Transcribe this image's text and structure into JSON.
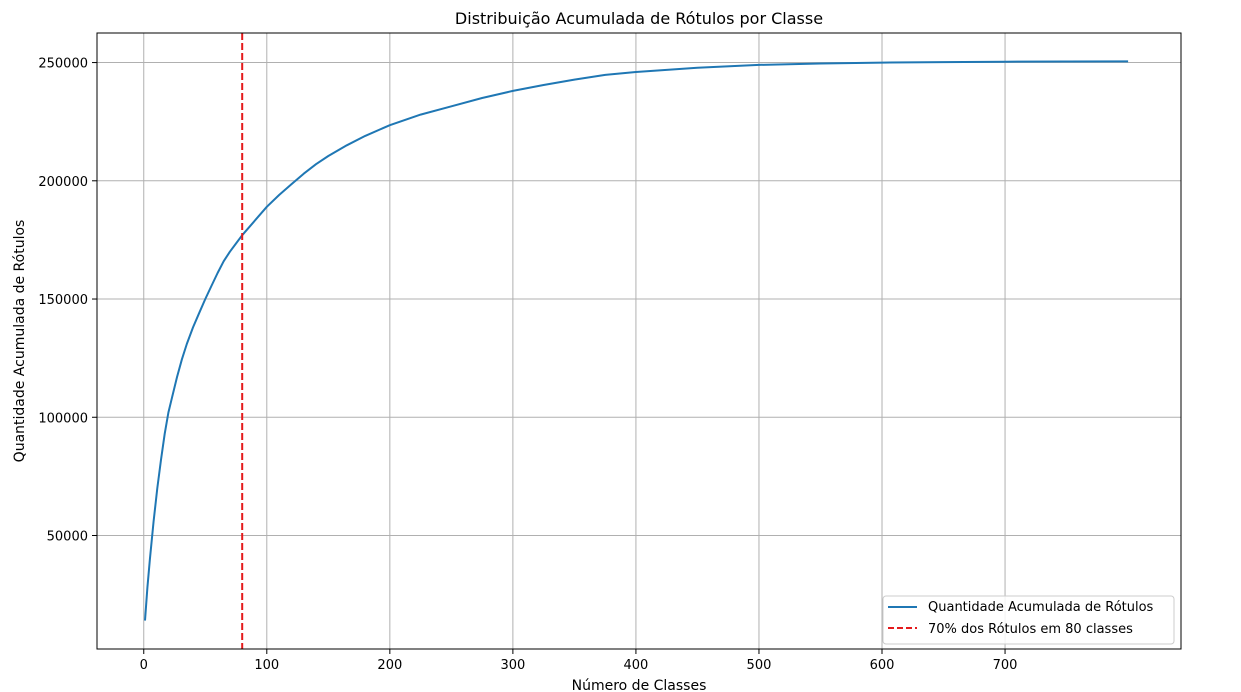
{
  "chart_data": {
    "type": "line",
    "title": "Distribuição Acumulada de Rótulos por Classe",
    "xlabel": "Número de Classes",
    "ylabel": "Quantidade Acumulada de Rótulos",
    "xlim": [
      -38,
      843
    ],
    "ylim": [
      2000,
      262500
    ],
    "xticks": [
      0,
      100,
      200,
      300,
      400,
      500,
      600,
      700
    ],
    "yticks": [
      50000,
      100000,
      150000,
      200000,
      250000
    ],
    "grid": true,
    "legend_position": "bottom-right",
    "series": [
      {
        "name": "Quantidade Acumulada de Rótulos",
        "color": "#1f77b4",
        "style": "solid",
        "x": [
          1,
          3,
          5,
          8,
          11,
          14,
          17,
          20,
          23,
          27,
          31,
          35,
          40,
          45,
          50,
          55,
          60,
          65,
          70,
          75,
          80,
          90,
          100,
          110,
          120,
          130,
          140,
          150,
          165,
          180,
          200,
          225,
          250,
          275,
          300,
          325,
          350,
          375,
          400,
          450,
          500,
          550,
          600,
          650,
          700,
          750,
          800
        ],
        "y": [
          14000,
          28000,
          40000,
          56000,
          70000,
          82000,
          93000,
          102000,
          108500,
          117000,
          124500,
          131000,
          138000,
          144000,
          150000,
          155500,
          161000,
          166000,
          170000,
          173500,
          177000,
          183000,
          189000,
          194000,
          198500,
          203000,
          207000,
          210500,
          215000,
          219000,
          223500,
          228000,
          231500,
          235000,
          238000,
          240500,
          242800,
          244800,
          246000,
          247800,
          249000,
          249600,
          250000,
          250200,
          250350,
          250450,
          250500
        ]
      },
      {
        "name": "70% dos Rótulos em 80 classes",
        "color": "#e41a1c",
        "style": "dashed",
        "vline_x": 80
      }
    ]
  }
}
